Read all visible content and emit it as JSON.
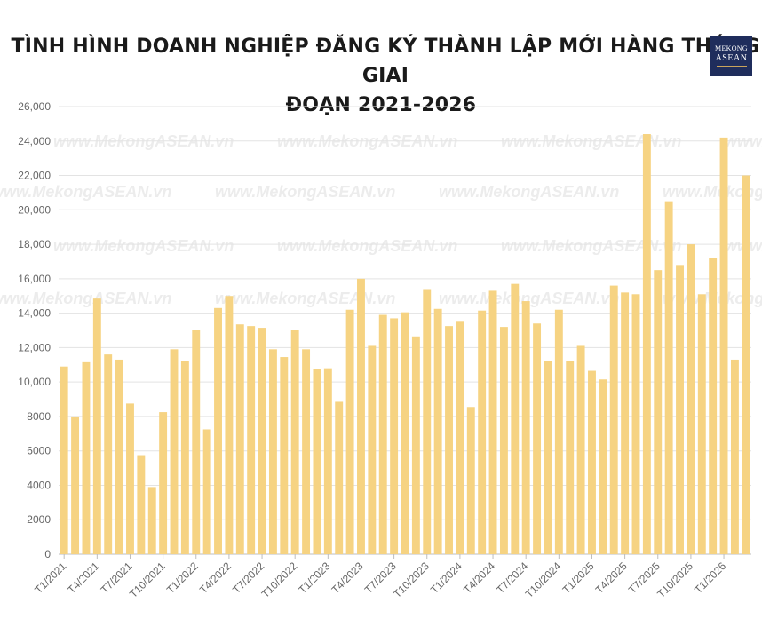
{
  "title_line1": "TÌNH HÌNH DOANH NGHIỆP ĐĂNG KÝ THÀNH LẬP MỚI HÀNG THÁNG GIAI",
  "title_line2": "ĐOẠN 2021-2026",
  "logo": {
    "line1": "MEKONG",
    "line2": "ASEAN"
  },
  "watermark": "www.MekongASEAN.vn",
  "colors": {
    "bar": "#f6d382",
    "grid": "#e3e3e3",
    "axis": "#bdbdbd",
    "logo_bg": "#1f2d5c"
  },
  "chart_data": {
    "type": "bar",
    "ylim": [
      0,
      26000
    ],
    "yticks": [
      "0",
      "2000",
      "4000",
      "6000",
      "8000",
      "10,000",
      "12,000",
      "14,000",
      "16,000",
      "18,000",
      "20,000",
      "22,000",
      "24,000",
      "26,000"
    ],
    "ytick_values": [
      0,
      2000,
      4000,
      6000,
      8000,
      10000,
      12000,
      14000,
      16000,
      18000,
      20000,
      22000,
      24000,
      26000
    ],
    "grid": true,
    "categories": [
      "T1/2021",
      "T2/2021",
      "T3/2021",
      "T4/2021",
      "T5/2021",
      "T6/2021",
      "T7/2021",
      "T8/2021",
      "T9/2021",
      "T10/2021",
      "T11/2021",
      "T12/2021",
      "T1/2022",
      "T2/2022",
      "T3/2022",
      "T4/2022",
      "T5/2022",
      "T6/2022",
      "T7/2022",
      "T8/2022",
      "T9/2022",
      "T10/2022",
      "T11/2022",
      "T12/2022",
      "T1/2023",
      "T2/2023",
      "T3/2023",
      "T4/2023",
      "T5/2023",
      "T6/2023",
      "T7/2023",
      "T8/2023",
      "T9/2023",
      "T10/2023",
      "T11/2023",
      "T12/2023",
      "T1/2024",
      "T2/2024",
      "T3/2024",
      "T4/2024",
      "T5/2024",
      "T6/2024",
      "T7/2024",
      "T8/2024",
      "T9/2024",
      "T10/2024",
      "T11/2024",
      "T12/2024",
      "T1/2025",
      "T2/2025",
      "T3/2025",
      "T4/2025",
      "T5/2025",
      "T6/2025",
      "T7/2025",
      "T8/2025",
      "T9/2025",
      "T10/2025",
      "T11/2025",
      "T12/2025",
      "T1/2026",
      "T2/2026",
      "T3/2026"
    ],
    "shown_labels": [
      "T1/2021",
      "T4/2021",
      "T7/2021",
      "T10/2021",
      "T1/2022",
      "T4/2022",
      "T7/2022",
      "T10/2022",
      "T1/2023",
      "T4/2023",
      "T7/2023",
      "T10/2023",
      "T1/2024",
      "T4/2024",
      "T7/2024",
      "T10/2024",
      "T1/2025",
      "T4/2025",
      "T7/2025",
      "T10/2025",
      "T1/2026"
    ],
    "values": [
      10900,
      8000,
      11150,
      14850,
      11600,
      11300,
      8750,
      5750,
      3900,
      8250,
      11900,
      11200,
      13000,
      7250,
      14300,
      15000,
      13350,
      13250,
      13150,
      11900,
      11450,
      13000,
      11900,
      10750,
      10800,
      8850,
      14200,
      16000,
      12100,
      13900,
      13700,
      14050,
      12650,
      15400,
      14250,
      13250,
      13500,
      8550,
      14150,
      15300,
      13200,
      15700,
      14700,
      13400,
      11200,
      14200,
      11200,
      12100,
      10650,
      10150,
      15600,
      15200,
      15100,
      24400,
      16500,
      20500,
      16800,
      18000,
      15100,
      17200,
      24200,
      11300,
      22000
    ]
  }
}
